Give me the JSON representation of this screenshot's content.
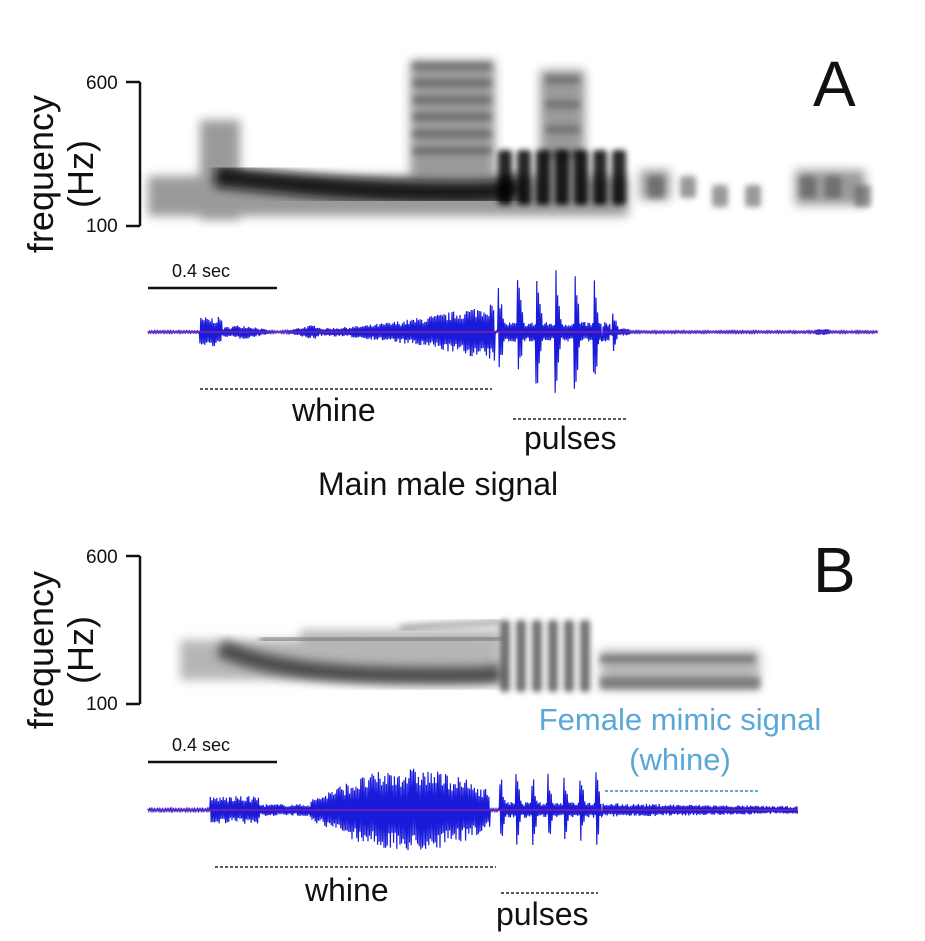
{
  "panels": [
    {
      "id": "A",
      "panel_label": "A",
      "y_axis_label_line1": "frequency",
      "y_axis_label_line2": "(Hz)",
      "y_tick_top": "600",
      "y_tick_bottom": "100",
      "scale_bar_label": "0.4 sec",
      "segments": [
        {
          "name": "whine",
          "label": "whine"
        },
        {
          "name": "pulses",
          "label": "pulses"
        }
      ],
      "caption": "Main male signal"
    },
    {
      "id": "B",
      "panel_label": "B",
      "y_axis_label_line1": "frequency",
      "y_axis_label_line2": "(Hz)",
      "y_tick_top": "600",
      "y_tick_bottom": "100",
      "scale_bar_label": "0.4 sec",
      "segments": [
        {
          "name": "whine",
          "label": "whine"
        },
        {
          "name": "pulses",
          "label": "pulses"
        }
      ],
      "mimic_label_line1": "Female mimic signal",
      "mimic_label_line2": "(whine)"
    }
  ],
  "colors": {
    "waveform": "#1a1adb",
    "waveform_center": "#ff3355",
    "spectrogram": "#111111",
    "mimic_accent": "#5aa8d8"
  }
}
